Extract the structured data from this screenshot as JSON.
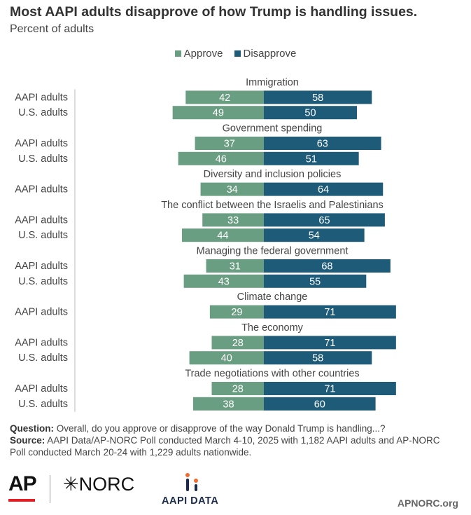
{
  "title": "Most AAPI adults disapprove of how Trump is handling issues.",
  "subtitle": "Percent of adults",
  "colors": {
    "approve": "#6a9e82",
    "disapprove": "#1d5b79"
  },
  "chart_data": {
    "type": "bar",
    "orientation": "horizontal-diverging",
    "legend": [
      "Approve",
      "Disapprove"
    ],
    "legend_placement": "top-center",
    "groups": [
      {
        "topic": "Immigration",
        "rows": [
          {
            "label": "AAPI adults",
            "approve": 42,
            "disapprove": 58
          },
          {
            "label": "U.S. adults",
            "approve": 49,
            "disapprove": 50
          }
        ]
      },
      {
        "topic": "Government spending",
        "rows": [
          {
            "label": "AAPI adults",
            "approve": 37,
            "disapprove": 63
          },
          {
            "label": "U.S. adults",
            "approve": 46,
            "disapprove": 51
          }
        ]
      },
      {
        "topic": "Diversity and inclusion policies",
        "rows": [
          {
            "label": "AAPI adults",
            "approve": 34,
            "disapprove": 64
          }
        ]
      },
      {
        "topic": "The conflict between the Israelis and Palestinians",
        "rows": [
          {
            "label": "AAPI adults",
            "approve": 33,
            "disapprove": 65
          },
          {
            "label": "U.S. adults",
            "approve": 44,
            "disapprove": 54
          }
        ]
      },
      {
        "topic": "Managing the federal government",
        "rows": [
          {
            "label": "AAPI adults",
            "approve": 31,
            "disapprove": 68
          },
          {
            "label": "U.S. adults",
            "approve": 43,
            "disapprove": 55
          }
        ]
      },
      {
        "topic": "Climate change",
        "rows": [
          {
            "label": "AAPI adults",
            "approve": 29,
            "disapprove": 71
          }
        ]
      },
      {
        "topic": "The economy",
        "rows": [
          {
            "label": "AAPI adults",
            "approve": 28,
            "disapprove": 71
          },
          {
            "label": "U.S. adults",
            "approve": 40,
            "disapprove": 58
          }
        ]
      },
      {
        "topic": "Trade negotiations with other countries",
        "rows": [
          {
            "label": "AAPI adults",
            "approve": 28,
            "disapprove": 71
          },
          {
            "label": "U.S. adults",
            "approve": 38,
            "disapprove": 60
          }
        ]
      }
    ]
  },
  "footer": {
    "question_label": "Question:",
    "question_text": " Overall, do you approve or disapprove of the way Donald Trump is handling...?",
    "source_label": "Source:",
    "source_text": " AAPI Data/AP-NORC Poll conducted March 4-10, 2025 with 1,182 AAPI adults and AP-NORC Poll conducted March 20-24 with 1,229 adults nationwide."
  },
  "logos": {
    "ap": "AP",
    "norc": "✳NORC",
    "aapi": "AAPI DATA"
  },
  "site": "APNORC.org"
}
